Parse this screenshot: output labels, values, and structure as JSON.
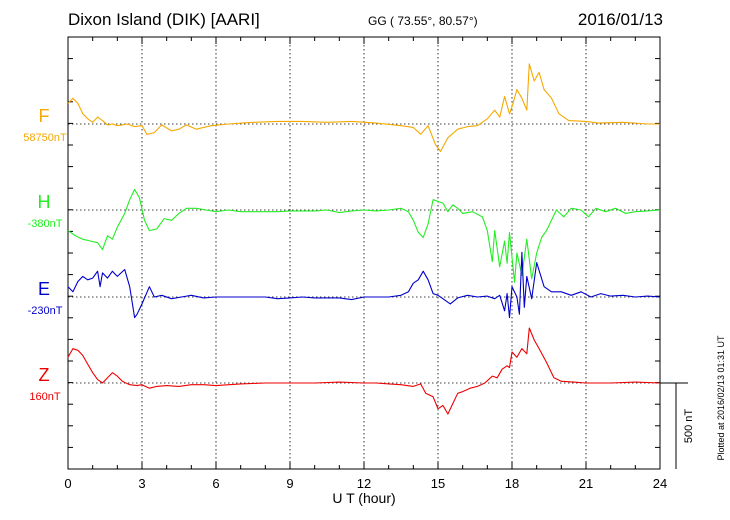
{
  "header": {
    "station": "Dixon Island (DIK)  [AARI]",
    "coords": "GG ( 73.55°,  80.57°)",
    "date": "2016/01/13"
  },
  "side_note": "Plotted at 2016/02/13 01:31  UT",
  "scale_label": "500 nT",
  "chart_data": {
    "type": "line",
    "xlabel": "U T (hour)",
    "ylabel": "",
    "xlim": [
      0,
      24
    ],
    "x_ticks": [
      "0",
      "3",
      "6",
      "9",
      "12",
      "15",
      "18",
      "21",
      "24"
    ],
    "grid": true,
    "scale_bar_nT": 500,
    "series": [
      {
        "name": "F",
        "label": "F",
        "baseline": "58750nT",
        "baseline_value": 58750,
        "color": "#f5a800",
        "points": [
          [
            0,
            120
          ],
          [
            0.2,
            150
          ],
          [
            0.4,
            120
          ],
          [
            0.6,
            60
          ],
          [
            0.8,
            30
          ],
          [
            1.0,
            10
          ],
          [
            1.2,
            40
          ],
          [
            1.4,
            20
          ],
          [
            1.6,
            -5
          ],
          [
            1.8,
            0
          ],
          [
            2.0,
            -10
          ],
          [
            2.4,
            0
          ],
          [
            2.7,
            -15
          ],
          [
            3.0,
            -10
          ],
          [
            3.2,
            -60
          ],
          [
            3.5,
            -50
          ],
          [
            3.8,
            -5
          ],
          [
            4.2,
            -40
          ],
          [
            4.5,
            -30
          ],
          [
            4.8,
            -5
          ],
          [
            5.2,
            -30
          ],
          [
            5.8,
            -10
          ],
          [
            6.5,
            0
          ],
          [
            7.5,
            10
          ],
          [
            8.5,
            15
          ],
          [
            9.5,
            15
          ],
          [
            10.5,
            10
          ],
          [
            11.5,
            15
          ],
          [
            12.5,
            5
          ],
          [
            13.5,
            -10
          ],
          [
            14.0,
            -20
          ],
          [
            14.3,
            -60
          ],
          [
            14.6,
            -10
          ],
          [
            14.9,
            -120
          ],
          [
            15.1,
            -160
          ],
          [
            15.4,
            -80
          ],
          [
            15.8,
            -30
          ],
          [
            16.2,
            -15
          ],
          [
            16.6,
            -10
          ],
          [
            17.0,
            30
          ],
          [
            17.3,
            80
          ],
          [
            17.5,
            40
          ],
          [
            17.7,
            160
          ],
          [
            17.9,
            60
          ],
          [
            18.0,
            100
          ],
          [
            18.2,
            200
          ],
          [
            18.4,
            150
          ],
          [
            18.6,
            80
          ],
          [
            18.7,
            350
          ],
          [
            18.9,
            250
          ],
          [
            19.1,
            300
          ],
          [
            19.3,
            200
          ],
          [
            19.6,
            150
          ],
          [
            19.9,
            60
          ],
          [
            20.3,
            20
          ],
          [
            21.0,
            15
          ],
          [
            21.5,
            5
          ],
          [
            22.5,
            10
          ],
          [
            23.5,
            0
          ],
          [
            24.0,
            0
          ]
        ]
      },
      {
        "name": "H",
        "label": "H",
        "baseline": "-380nT",
        "baseline_value": -380,
        "color": "#22ee22",
        "points": [
          [
            0,
            -120
          ],
          [
            0.3,
            -150
          ],
          [
            0.6,
            -170
          ],
          [
            0.9,
            -180
          ],
          [
            1.2,
            -190
          ],
          [
            1.4,
            -230
          ],
          [
            1.6,
            -150
          ],
          [
            1.8,
            -170
          ],
          [
            2.0,
            -100
          ],
          [
            2.3,
            -20
          ],
          [
            2.5,
            60
          ],
          [
            2.7,
            120
          ],
          [
            2.9,
            70
          ],
          [
            3.1,
            -60
          ],
          [
            3.3,
            -120
          ],
          [
            3.6,
            -110
          ],
          [
            3.9,
            -50
          ],
          [
            4.2,
            -60
          ],
          [
            4.5,
            -20
          ],
          [
            4.8,
            10
          ],
          [
            5.2,
            10
          ],
          [
            5.6,
            0
          ],
          [
            6.0,
            -10
          ],
          [
            6.5,
            0
          ],
          [
            7.0,
            -10
          ],
          [
            7.5,
            -10
          ],
          [
            8.0,
            -10
          ],
          [
            8.5,
            -10
          ],
          [
            9.0,
            -5
          ],
          [
            9.5,
            -5
          ],
          [
            10.0,
            -5
          ],
          [
            10.5,
            0
          ],
          [
            11.0,
            -15
          ],
          [
            11.5,
            -5
          ],
          [
            12.0,
            0
          ],
          [
            12.5,
            -5
          ],
          [
            13.0,
            0
          ],
          [
            13.5,
            10
          ],
          [
            13.8,
            -10
          ],
          [
            14.0,
            -60
          ],
          [
            14.2,
            -130
          ],
          [
            14.4,
            -160
          ],
          [
            14.6,
            -80
          ],
          [
            14.8,
            60
          ],
          [
            15.0,
            50
          ],
          [
            15.2,
            40
          ],
          [
            15.4,
            -10
          ],
          [
            15.6,
            30
          ],
          [
            15.8,
            10
          ],
          [
            16.0,
            -20
          ],
          [
            16.4,
            -10
          ],
          [
            16.8,
            -40
          ],
          [
            17.0,
            -120
          ],
          [
            17.2,
            -300
          ],
          [
            17.3,
            -120
          ],
          [
            17.5,
            -330
          ],
          [
            17.7,
            -180
          ],
          [
            17.8,
            -310
          ],
          [
            17.9,
            -130
          ],
          [
            18.1,
            -420
          ],
          [
            18.2,
            -250
          ],
          [
            18.4,
            -380
          ],
          [
            18.6,
            -170
          ],
          [
            18.8,
            -400
          ],
          [
            19.0,
            -250
          ],
          [
            19.2,
            -160
          ],
          [
            19.4,
            -120
          ],
          [
            19.6,
            -60
          ],
          [
            19.8,
            0
          ],
          [
            20.1,
            -40
          ],
          [
            20.4,
            10
          ],
          [
            20.8,
            0
          ],
          [
            21.1,
            -40
          ],
          [
            21.4,
            10
          ],
          [
            21.8,
            -10
          ],
          [
            22.2,
            10
          ],
          [
            22.6,
            -20
          ],
          [
            23.0,
            -10
          ],
          [
            23.5,
            -5
          ],
          [
            24.0,
            0
          ]
        ]
      },
      {
        "name": "E",
        "label": "E",
        "baseline": "-230nT",
        "baseline_value": -230,
        "color": "#0000cc",
        "points": [
          [
            0,
            60
          ],
          [
            0.2,
            30
          ],
          [
            0.4,
            90
          ],
          [
            0.6,
            120
          ],
          [
            0.8,
            100
          ],
          [
            1.0,
            110
          ],
          [
            1.2,
            150
          ],
          [
            1.3,
            60
          ],
          [
            1.4,
            140
          ],
          [
            1.6,
            110
          ],
          [
            1.8,
            150
          ],
          [
            2.0,
            120
          ],
          [
            2.3,
            160
          ],
          [
            2.5,
            60
          ],
          [
            2.7,
            -120
          ],
          [
            2.8,
            -100
          ],
          [
            3.0,
            -40
          ],
          [
            3.3,
            60
          ],
          [
            3.5,
            0
          ],
          [
            3.8,
            10
          ],
          [
            4.2,
            -10
          ],
          [
            4.6,
            0
          ],
          [
            5.0,
            10
          ],
          [
            5.5,
            -5
          ],
          [
            6.0,
            0
          ],
          [
            7.0,
            0
          ],
          [
            8.0,
            0
          ],
          [
            8.5,
            -10
          ],
          [
            9.0,
            -5
          ],
          [
            9.5,
            0
          ],
          [
            10.0,
            -5
          ],
          [
            11.0,
            -5
          ],
          [
            11.5,
            -15
          ],
          [
            12.0,
            0
          ],
          [
            12.5,
            0
          ],
          [
            13.0,
            0
          ],
          [
            13.5,
            10
          ],
          [
            13.8,
            30
          ],
          [
            14.0,
            80
          ],
          [
            14.2,
            100
          ],
          [
            14.4,
            150
          ],
          [
            14.6,
            100
          ],
          [
            14.8,
            20
          ],
          [
            15.0,
            10
          ],
          [
            15.2,
            -10
          ],
          [
            15.5,
            -40
          ],
          [
            15.8,
            -5
          ],
          [
            16.2,
            10
          ],
          [
            16.6,
            0
          ],
          [
            17.0,
            5
          ],
          [
            17.3,
            -10
          ],
          [
            17.5,
            10
          ],
          [
            17.7,
            -80
          ],
          [
            17.8,
            20
          ],
          [
            17.9,
            -120
          ],
          [
            18.0,
            60
          ],
          [
            18.2,
            0
          ],
          [
            18.3,
            -100
          ],
          [
            18.4,
            260
          ],
          [
            18.5,
            -60
          ],
          [
            18.6,
            120
          ],
          [
            18.8,
            -10
          ],
          [
            19.0,
            200
          ],
          [
            19.3,
            60
          ],
          [
            19.6,
            30
          ],
          [
            20.0,
            30
          ],
          [
            20.4,
            10
          ],
          [
            20.8,
            30
          ],
          [
            21.2,
            0
          ],
          [
            21.6,
            20
          ],
          [
            22.0,
            5
          ],
          [
            22.5,
            10
          ],
          [
            23.0,
            0
          ],
          [
            23.5,
            5
          ],
          [
            24.0,
            0
          ]
        ]
      },
      {
        "name": "Z",
        "label": "Z",
        "baseline": "160nT",
        "baseline_value": 160,
        "color": "#ee0000",
        "points": [
          [
            0,
            150
          ],
          [
            0.2,
            200
          ],
          [
            0.4,
            190
          ],
          [
            0.6,
            160
          ],
          [
            0.8,
            110
          ],
          [
            1.0,
            60
          ],
          [
            1.2,
            20
          ],
          [
            1.4,
            0
          ],
          [
            1.6,
            30
          ],
          [
            1.8,
            60
          ],
          [
            2.0,
            40
          ],
          [
            2.2,
            10
          ],
          [
            2.5,
            -10
          ],
          [
            2.8,
            -15
          ],
          [
            3.0,
            -10
          ],
          [
            3.3,
            -30
          ],
          [
            3.6,
            -20
          ],
          [
            4.0,
            -15
          ],
          [
            4.5,
            -20
          ],
          [
            5.0,
            -10
          ],
          [
            5.5,
            -10
          ],
          [
            6.0,
            -15
          ],
          [
            7.0,
            -5
          ],
          [
            8.0,
            0
          ],
          [
            9.0,
            0
          ],
          [
            10.0,
            0
          ],
          [
            11.0,
            5
          ],
          [
            12.0,
            0
          ],
          [
            12.5,
            0
          ],
          [
            13.0,
            -5
          ],
          [
            13.5,
            -10
          ],
          [
            14.0,
            -20
          ],
          [
            14.3,
            -5
          ],
          [
            14.5,
            -60
          ],
          [
            14.8,
            -80
          ],
          [
            15.0,
            -150
          ],
          [
            15.2,
            -130
          ],
          [
            15.4,
            -180
          ],
          [
            15.6,
            -120
          ],
          [
            15.8,
            -60
          ],
          [
            16.0,
            -50
          ],
          [
            16.3,
            -30
          ],
          [
            16.6,
            -20
          ],
          [
            16.9,
            0
          ],
          [
            17.2,
            40
          ],
          [
            17.4,
            30
          ],
          [
            17.6,
            80
          ],
          [
            17.8,
            100
          ],
          [
            17.9,
            90
          ],
          [
            18.0,
            180
          ],
          [
            18.2,
            150
          ],
          [
            18.4,
            200
          ],
          [
            18.6,
            170
          ],
          [
            18.7,
            320
          ],
          [
            18.9,
            250
          ],
          [
            19.1,
            200
          ],
          [
            19.4,
            120
          ],
          [
            19.7,
            30
          ],
          [
            20.0,
            10
          ],
          [
            20.5,
            5
          ],
          [
            21.0,
            0
          ],
          [
            22.0,
            0
          ],
          [
            23.0,
            5
          ],
          [
            24.0,
            0
          ]
        ]
      }
    ]
  }
}
